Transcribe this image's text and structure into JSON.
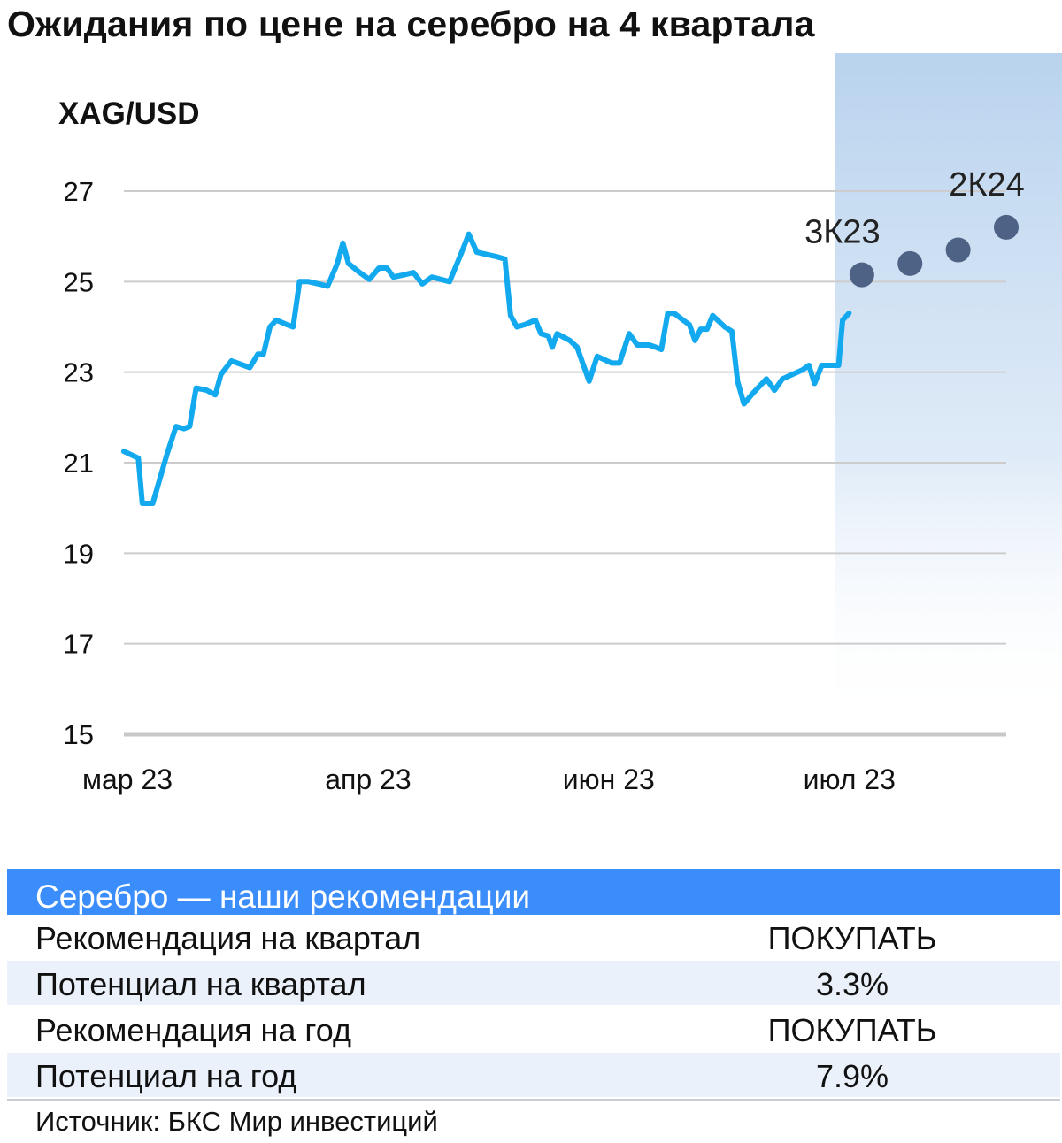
{
  "title": "Ожидания по цене на серебро на 4 квартала",
  "chart_data": {
    "type": "line",
    "ylabel": "XAG/USD",
    "ylim": [
      15,
      27
    ],
    "yticks": [
      27,
      25,
      23,
      21,
      19,
      17,
      15
    ],
    "xlabels": [
      "мар 23",
      "апр 23",
      "июн 23",
      "июл 23"
    ],
    "xlabel_positions": [
      0,
      3,
      6,
      9
    ],
    "x_range": [
      0,
      11
    ],
    "grid": true,
    "forecast_region_start_x": 8.86,
    "series": [
      {
        "values": [
          [
            0.0,
            21.25
          ],
          [
            0.18,
            21.1
          ],
          [
            0.23,
            20.1
          ],
          [
            0.36,
            20.1
          ],
          [
            0.54,
            21.2
          ],
          [
            0.65,
            21.8
          ],
          [
            0.75,
            21.75
          ],
          [
            0.82,
            21.8
          ],
          [
            0.9,
            22.65
          ],
          [
            1.03,
            22.6
          ],
          [
            1.14,
            22.5
          ],
          [
            1.21,
            22.95
          ],
          [
            1.34,
            23.25
          ],
          [
            1.57,
            23.1
          ],
          [
            1.67,
            23.4
          ],
          [
            1.74,
            23.4
          ],
          [
            1.82,
            24.0
          ],
          [
            1.9,
            24.15
          ],
          [
            2.03,
            24.05
          ],
          [
            2.11,
            24.0
          ],
          [
            2.19,
            25.0
          ],
          [
            2.3,
            25.0
          ],
          [
            2.43,
            24.95
          ],
          [
            2.54,
            24.9
          ],
          [
            2.66,
            25.4
          ],
          [
            2.73,
            25.85
          ],
          [
            2.8,
            25.4
          ],
          [
            2.94,
            25.2
          ],
          [
            3.06,
            25.05
          ],
          [
            3.18,
            25.3
          ],
          [
            3.28,
            25.3
          ],
          [
            3.36,
            25.1
          ],
          [
            3.49,
            25.15
          ],
          [
            3.61,
            25.2
          ],
          [
            3.72,
            24.95
          ],
          [
            3.84,
            25.1
          ],
          [
            4.06,
            25.0
          ],
          [
            4.2,
            25.6
          ],
          [
            4.3,
            26.05
          ],
          [
            4.4,
            25.65
          ],
          [
            4.52,
            25.6
          ],
          [
            4.65,
            25.55
          ],
          [
            4.75,
            25.5
          ],
          [
            4.82,
            24.25
          ],
          [
            4.9,
            24.0
          ],
          [
            5.0,
            24.05
          ],
          [
            5.13,
            24.15
          ],
          [
            5.2,
            23.85
          ],
          [
            5.29,
            23.8
          ],
          [
            5.34,
            23.55
          ],
          [
            5.4,
            23.85
          ],
          [
            5.56,
            23.7
          ],
          [
            5.65,
            23.55
          ],
          [
            5.72,
            23.2
          ],
          [
            5.8,
            22.8
          ],
          [
            5.9,
            23.35
          ],
          [
            6.08,
            23.2
          ],
          [
            6.18,
            23.2
          ],
          [
            6.3,
            23.85
          ],
          [
            6.4,
            23.6
          ],
          [
            6.55,
            23.6
          ],
          [
            6.63,
            23.55
          ],
          [
            6.7,
            23.5
          ],
          [
            6.78,
            24.3
          ],
          [
            6.86,
            24.3
          ],
          [
            6.97,
            24.15
          ],
          [
            7.05,
            24.05
          ],
          [
            7.12,
            23.7
          ],
          [
            7.19,
            23.95
          ],
          [
            7.27,
            23.95
          ],
          [
            7.34,
            24.25
          ],
          [
            7.49,
            24.0
          ],
          [
            7.58,
            23.9
          ],
          [
            7.65,
            22.8
          ],
          [
            7.73,
            22.3
          ],
          [
            7.85,
            22.55
          ],
          [
            8.01,
            22.85
          ],
          [
            8.11,
            22.6
          ],
          [
            8.21,
            22.85
          ],
          [
            8.46,
            23.05
          ],
          [
            8.54,
            23.15
          ],
          [
            8.61,
            22.75
          ],
          [
            8.7,
            23.15
          ],
          [
            8.78,
            23.15
          ],
          [
            8.91,
            23.15
          ],
          [
            8.96,
            24.15
          ],
          [
            9.04,
            24.3
          ]
        ]
      },
      {
        "type": "scatter",
        "values": [
          [
            9.2,
            25.15
          ],
          [
            9.8,
            25.4
          ],
          [
            10.4,
            25.7
          ],
          [
            11.0,
            26.2
          ]
        ],
        "point_labels": [
          "3К23",
          "",
          "",
          "2К24"
        ]
      }
    ],
    "colors": {
      "line": "#13a9ee",
      "forecast_points": "#4e6286",
      "forecast_band": "#bfd6ee",
      "grid": "#cccccc",
      "axis": "#c8c8c8"
    }
  },
  "recommendations": {
    "header": "Серебро — наши рекомендации",
    "rows": [
      {
        "label": "Рекомендация на квартал",
        "value": "ПОКУПАТЬ"
      },
      {
        "label": "Потенциал на квартал",
        "value": "3.3%"
      },
      {
        "label": "Рекомендация на год",
        "value": "ПОКУПАТЬ"
      },
      {
        "label": "Потенциал на год",
        "value": "7.9%"
      }
    ],
    "colors": {
      "header_bg": "#3a8dfb",
      "alt_row_bg": "#ebf1fa"
    }
  },
  "source": "Источник: БКС Мир инвестиций"
}
